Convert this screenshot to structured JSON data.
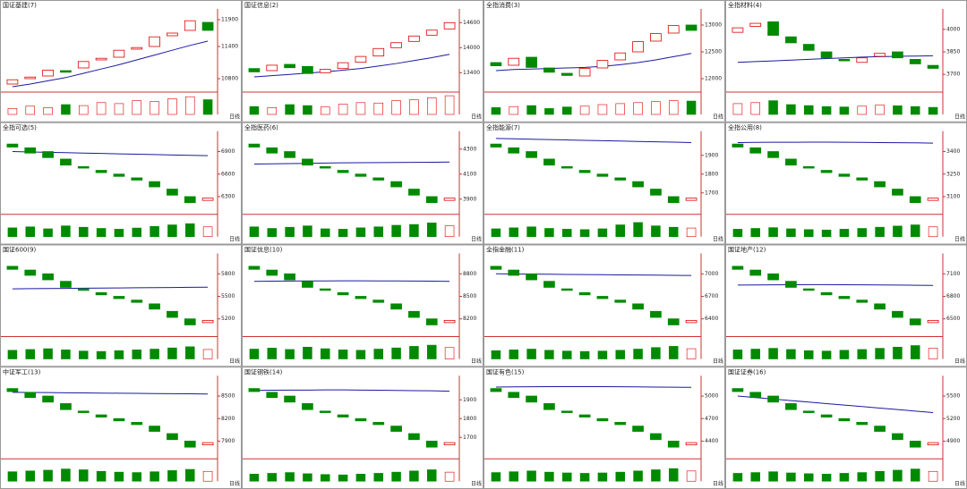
{
  "period_label": "日线",
  "up_color": "#e00000",
  "down_color": "#008a00",
  "ma_color": "#1a1aa0",
  "volume_lim": [
    0,
    100
  ],
  "chart_data": [
    {
      "type": "candlestick",
      "title": "国证基建(7)",
      "ylim": [
        10600,
        12000
      ],
      "yticks": [
        10800,
        11400,
        11900
      ],
      "open": [
        10700,
        10800,
        10850,
        10950,
        11000,
        11150,
        11200,
        11350,
        11400,
        11600,
        11700,
        11850
      ],
      "close": [
        10780,
        10830,
        10960,
        10920,
        11120,
        11180,
        11330,
        11380,
        11580,
        11650,
        11880,
        11700
      ],
      "ma": [
        10650,
        10700,
        10760,
        10820,
        10900,
        10980,
        11060,
        11150,
        11240,
        11330,
        11420,
        11500
      ],
      "volume": [
        30,
        42,
        35,
        50,
        45,
        60,
        55,
        70,
        65,
        80,
        90,
        75
      ]
    },
    {
      "type": "candlestick",
      "title": "国证信息(2)",
      "ylim": [
        13000,
        14800
      ],
      "yticks": [
        13400,
        14000,
        14600
      ],
      "open": [
        13500,
        13450,
        13600,
        13550,
        13400,
        13500,
        13650,
        13800,
        14000,
        14150,
        14300,
        14450
      ],
      "close": [
        13420,
        13580,
        13520,
        13380,
        13480,
        13640,
        13790,
        13980,
        14120,
        14280,
        14420,
        14600
      ],
      "ma": [
        13300,
        13330,
        13360,
        13390,
        13420,
        13460,
        13500,
        13560,
        13620,
        13690,
        13760,
        13840
      ],
      "volume": [
        40,
        35,
        50,
        45,
        38,
        52,
        60,
        58,
        70,
        75,
        85,
        95
      ]
    },
    {
      "type": "candlestick",
      "title": "全指消费(3)",
      "ylim": [
        11800,
        13200
      ],
      "yticks": [
        12000,
        12500,
        13000
      ],
      "open": [
        12300,
        12250,
        12400,
        12200,
        12100,
        12050,
        12200,
        12350,
        12500,
        12700,
        12850,
        13000
      ],
      "close": [
        12240,
        12380,
        12210,
        12120,
        12060,
        12190,
        12340,
        12480,
        12690,
        12840,
        12990,
        12900
      ],
      "ma": [
        12150,
        12170,
        12180,
        12190,
        12200,
        12210,
        12230,
        12260,
        12300,
        12350,
        12410,
        12470
      ],
      "volume": [
        35,
        40,
        45,
        30,
        38,
        42,
        50,
        55,
        60,
        65,
        70,
        68
      ]
    },
    {
      "type": "candlestick",
      "title": "全指材料(4)",
      "ylim": [
        3600,
        4100
      ],
      "yticks": [
        3700,
        3850,
        4000
      ],
      "open": [
        3980,
        4020,
        4050,
        3950,
        3900,
        3850,
        3800,
        3780,
        3820,
        3850,
        3800,
        3760
      ],
      "close": [
        4010,
        4040,
        3960,
        3910,
        3860,
        3810,
        3790,
        3810,
        3840,
        3810,
        3770,
        3740
      ],
      "ma": [
        3780,
        3785,
        3790,
        3795,
        3800,
        3805,
        3810,
        3815,
        3818,
        3820,
        3822,
        3824
      ],
      "volume": [
        55,
        60,
        70,
        50,
        45,
        40,
        38,
        42,
        48,
        44,
        40,
        36
      ]
    },
    {
      "type": "candlestick",
      "title": "全指可选(5)",
      "ylim": [
        6100,
        7100
      ],
      "yticks": [
        6300,
        6600,
        6900
      ],
      "open": [
        7000,
        6950,
        6900,
        6800,
        6700,
        6650,
        6600,
        6550,
        6500,
        6400,
        6300,
        6250
      ],
      "close": [
        6960,
        6880,
        6820,
        6720,
        6680,
        6620,
        6570,
        6520,
        6430,
        6320,
        6220,
        6280
      ],
      "ma": [
        6900,
        6895,
        6890,
        6885,
        6880,
        6875,
        6870,
        6865,
        6860,
        6855,
        6850,
        6845
      ],
      "volume": [
        45,
        50,
        40,
        55,
        48,
        42,
        38,
        44,
        52,
        60,
        66,
        50
      ]
    },
    {
      "type": "candlestick",
      "title": "全指医药(6)",
      "ylim": [
        3800,
        4400
      ],
      "yticks": [
        3900,
        4100,
        4300
      ],
      "open": [
        4340,
        4310,
        4280,
        4220,
        4160,
        4130,
        4100,
        4070,
        4040,
        3980,
        3920,
        3890
      ],
      "close": [
        4316,
        4268,
        4232,
        4172,
        4148,
        4112,
        4082,
        4052,
        3998,
        3932,
        3872,
        3908
      ],
      "ma": [
        4180,
        4182,
        4184,
        4186,
        4188,
        4190,
        4191,
        4192,
        4193,
        4194,
        4195,
        4196
      ],
      "volume": [
        50,
        42,
        48,
        55,
        40,
        38,
        45,
        50,
        58,
        62,
        70,
        55
      ]
    },
    {
      "type": "candlestick",
      "title": "全指能源(7)",
      "ylim": [
        1600,
        2000
      ],
      "yticks": [
        1700,
        1800,
        1900
      ],
      "open": [
        1960,
        1940,
        1920,
        1880,
        1840,
        1820,
        1800,
        1780,
        1760,
        1720,
        1680,
        1660
      ],
      "close": [
        1944,
        1912,
        1888,
        1848,
        1832,
        1808,
        1788,
        1768,
        1732,
        1688,
        1648,
        1672
      ],
      "ma": [
        1990,
        1988,
        1986,
        1984,
        1982,
        1980,
        1978,
        1976,
        1974,
        1972,
        1970,
        1968
      ],
      "volume": [
        40,
        45,
        50,
        42,
        38,
        36,
        40,
        60,
        72,
        55,
        48,
        44
      ]
    },
    {
      "type": "candlestick",
      "title": "全指公用(8)",
      "ylim": [
        3000,
        3500
      ],
      "yticks": [
        3100,
        3250,
        3400
      ],
      "open": [
        3450,
        3425,
        3400,
        3350,
        3300,
        3275,
        3250,
        3225,
        3200,
        3150,
        3100,
        3075
      ],
      "close": [
        3430,
        3390,
        3360,
        3310,
        3290,
        3260,
        3235,
        3210,
        3165,
        3110,
        3060,
        3090
      ],
      "ma": [
        3460,
        3461,
        3462,
        3462,
        3463,
        3463,
        3462,
        3461,
        3460,
        3459,
        3458,
        3456
      ],
      "volume": [
        38,
        42,
        46,
        40,
        36,
        34,
        38,
        42,
        48,
        54,
        60,
        50
      ]
    },
    {
      "type": "candlestick",
      "title": "国证600(9)",
      "ylim": [
        5000,
        6000
      ],
      "yticks": [
        5200,
        5500,
        5800
      ],
      "open": [
        5900,
        5850,
        5800,
        5700,
        5600,
        5550,
        5500,
        5450,
        5400,
        5300,
        5200,
        5150
      ],
      "close": [
        5860,
        5780,
        5720,
        5620,
        5580,
        5520,
        5470,
        5420,
        5330,
        5220,
        5120,
        5180
      ],
      "ma": [
        5600,
        5602,
        5604,
        5606,
        5608,
        5610,
        5612,
        5614,
        5616,
        5618,
        5620,
        5622
      ],
      "volume": [
        44,
        48,
        52,
        46,
        40,
        38,
        42,
        46,
        50,
        56,
        62,
        48
      ]
    },
    {
      "type": "candlestick",
      "title": "国证信息(10)",
      "ylim": [
        8000,
        9000
      ],
      "yticks": [
        8200,
        8500,
        8800
      ],
      "open": [
        8900,
        8850,
        8800,
        8700,
        8600,
        8550,
        8500,
        8450,
        8400,
        8300,
        8200,
        8150
      ],
      "close": [
        8860,
        8780,
        8720,
        8620,
        8580,
        8520,
        8470,
        8420,
        8330,
        8220,
        8120,
        8180
      ],
      "ma": [
        8700,
        8702,
        8704,
        8705,
        8706,
        8707,
        8707,
        8706,
        8705,
        8704,
        8702,
        8700
      ],
      "volume": [
        50,
        55,
        48,
        60,
        52,
        46,
        44,
        50,
        56,
        64,
        70,
        58
      ]
    },
    {
      "type": "candlestick",
      "title": "全指金融(11)",
      "ylim": [
        6200,
        7200
      ],
      "yticks": [
        6400,
        6700,
        7000
      ],
      "open": [
        7100,
        7050,
        7000,
        6900,
        6800,
        6750,
        6700,
        6650,
        6600,
        6500,
        6400,
        6350
      ],
      "close": [
        7060,
        6980,
        6920,
        6820,
        6780,
        6720,
        6670,
        6620,
        6530,
        6420,
        6320,
        6380
      ],
      "ma": [
        7000,
        6998,
        6996,
        6994,
        6992,
        6990,
        6988,
        6986,
        6984,
        6982,
        6980,
        6978
      ],
      "volume": [
        42,
        46,
        50,
        44,
        40,
        38,
        40,
        44,
        50,
        58,
        64,
        52
      ]
    },
    {
      "type": "candlestick",
      "title": "国证地产(12)",
      "ylim": [
        6300,
        7300
      ],
      "yticks": [
        6500,
        6800,
        7100
      ],
      "open": [
        7200,
        7150,
        7100,
        7000,
        6900,
        6850,
        6800,
        6750,
        6700,
        6600,
        6500,
        6450
      ],
      "close": [
        7160,
        7080,
        7020,
        6920,
        6880,
        6820,
        6770,
        6720,
        6630,
        6520,
        6420,
        6480
      ],
      "ma": [
        6950,
        6952,
        6954,
        6955,
        6956,
        6956,
        6955,
        6954,
        6952,
        6950,
        6948,
        6946
      ],
      "volume": [
        46,
        50,
        54,
        48,
        42,
        40,
        44,
        48,
        54,
        60,
        68,
        54
      ]
    },
    {
      "type": "candlestick",
      "title": "中证军工(13)",
      "ylim": [
        7700,
        8700
      ],
      "yticks": [
        7900,
        8200,
        8500
      ],
      "open": [
        8600,
        8550,
        8500,
        8400,
        8300,
        8250,
        8200,
        8150,
        8100,
        8000,
        7900,
        7850
      ],
      "close": [
        8560,
        8480,
        8420,
        8320,
        8280,
        8220,
        8170,
        8120,
        8030,
        7920,
        7820,
        7880
      ],
      "ma": [
        8550,
        8548,
        8546,
        8544,
        8542,
        8540,
        8538,
        8536,
        8534,
        8532,
        8530,
        8528
      ],
      "volume": [
        48,
        52,
        56,
        62,
        58,
        50,
        46,
        44,
        48,
        54,
        60,
        50
      ]
    },
    {
      "type": "candlestick",
      "title": "国证钢铁(14)",
      "ylim": [
        1600,
        2000
      ],
      "yticks": [
        1700,
        1800,
        1900
      ],
      "open": [
        1960,
        1940,
        1920,
        1880,
        1840,
        1820,
        1800,
        1780,
        1760,
        1720,
        1680,
        1660
      ],
      "close": [
        1944,
        1912,
        1888,
        1848,
        1832,
        1808,
        1788,
        1768,
        1732,
        1688,
        1648,
        1672
      ],
      "ma": [
        1950,
        1951,
        1952,
        1952,
        1953,
        1953,
        1952,
        1951,
        1950,
        1949,
        1948,
        1946
      ],
      "volume": [
        36,
        40,
        44,
        38,
        34,
        32,
        36,
        40,
        46,
        52,
        58,
        46
      ]
    },
    {
      "type": "candlestick",
      "title": "国证有色(15)",
      "ylim": [
        4200,
        5200
      ],
      "yticks": [
        4400,
        4700,
        5000
      ],
      "open": [
        5100,
        5050,
        5000,
        4900,
        4800,
        4750,
        4700,
        4650,
        4600,
        4500,
        4400,
        4350
      ],
      "close": [
        5060,
        4980,
        4920,
        4820,
        4780,
        4720,
        4670,
        4620,
        4530,
        4420,
        4320,
        4380
      ],
      "ma": [
        5120,
        5122,
        5124,
        5125,
        5126,
        5126,
        5125,
        5124,
        5122,
        5120,
        5118,
        5116
      ],
      "volume": [
        44,
        48,
        52,
        46,
        42,
        40,
        42,
        46,
        52,
        58,
        64,
        52
      ]
    },
    {
      "type": "candlestick",
      "title": "国证证券(16)",
      "ylim": [
        4700,
        5700
      ],
      "yticks": [
        4900,
        5200,
        5500
      ],
      "open": [
        5600,
        5550,
        5500,
        5400,
        5300,
        5250,
        5200,
        5150,
        5100,
        5000,
        4900,
        4850
      ],
      "close": [
        5560,
        5480,
        5420,
        5320,
        5280,
        5220,
        5170,
        5120,
        5030,
        4920,
        4820,
        4880
      ],
      "ma": [
        5500,
        5480,
        5460,
        5440,
        5420,
        5400,
        5380,
        5360,
        5340,
        5320,
        5300,
        5280
      ],
      "volume": [
        40,
        44,
        48,
        42,
        38,
        36,
        40,
        44,
        50,
        56,
        62,
        50
      ]
    }
  ]
}
